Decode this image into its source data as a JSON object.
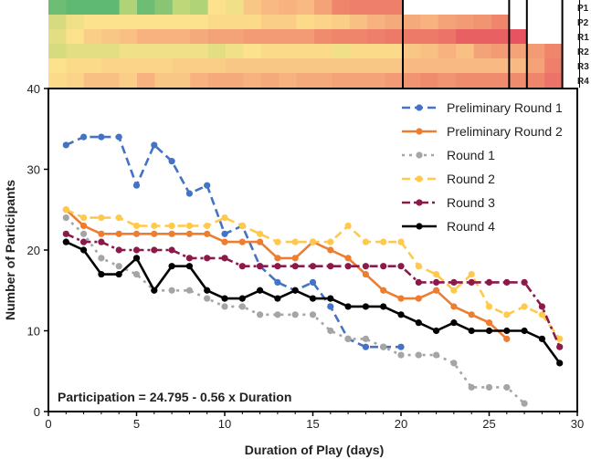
{
  "chart_data": {
    "type": "line",
    "xlabel": "Duration of Play (days)",
    "ylabel": "Number of Participants",
    "xlim": [
      0,
      30
    ],
    "ylim": [
      0,
      40
    ],
    "xticks": [
      "0",
      "5",
      "10",
      "15",
      "20",
      "25",
      "30"
    ],
    "yticks": [
      "0",
      "10",
      "20",
      "30",
      "40"
    ],
    "annotation": "Participation = 24.795 - 0.56 x Duration",
    "legend_position": "top-right",
    "series": [
      {
        "name": "Preliminary Round 1",
        "color": "#4472C4",
        "dash": "dash",
        "x": [
          1,
          2,
          3,
          4,
          5,
          6,
          7,
          8,
          9,
          10,
          11,
          12,
          13,
          14,
          15,
          16,
          17,
          18,
          19,
          20
        ],
        "values": [
          33,
          34,
          34,
          34,
          28,
          33,
          31,
          27,
          28,
          22,
          23,
          18,
          16,
          15,
          16,
          13,
          9,
          8,
          8,
          8
        ]
      },
      {
        "name": "Preliminary Round 2",
        "color": "#ED7D31",
        "dash": "solid",
        "x": [
          1,
          2,
          3,
          4,
          5,
          6,
          7,
          8,
          9,
          10,
          11,
          12,
          13,
          14,
          15,
          16,
          17,
          18,
          19,
          20,
          21,
          22,
          23,
          24,
          25,
          26
        ],
        "values": [
          25,
          23,
          22,
          22,
          22,
          22,
          22,
          22,
          22,
          21,
          21,
          21,
          19,
          19,
          21,
          20,
          19,
          17,
          15,
          14,
          14,
          15,
          13,
          12,
          11,
          9
        ]
      },
      {
        "name": "Round 1",
        "color": "#A5A5A5",
        "dash": "dot",
        "x": [
          1,
          2,
          3,
          4,
          5,
          6,
          7,
          8,
          9,
          10,
          11,
          12,
          13,
          14,
          15,
          16,
          17,
          18,
          19,
          20,
          21,
          22,
          23,
          24,
          25,
          26,
          27
        ],
        "values": [
          24,
          22,
          19,
          18,
          17,
          15,
          15,
          15,
          14,
          13,
          13,
          12,
          12,
          12,
          12,
          10,
          9,
          9,
          8,
          7,
          7,
          7,
          6,
          3,
          3,
          3,
          1
        ]
      },
      {
        "name": "Round 2",
        "color": "#FFC94D",
        "dash": "dash",
        "x": [
          1,
          2,
          3,
          4,
          5,
          6,
          7,
          8,
          9,
          10,
          11,
          12,
          13,
          14,
          15,
          16,
          17,
          18,
          19,
          20,
          21,
          22,
          23,
          24,
          25,
          26,
          27,
          28,
          29
        ],
        "values": [
          25,
          24,
          24,
          24,
          23,
          23,
          23,
          23,
          23,
          24,
          23,
          22,
          21,
          21,
          21,
          21,
          23,
          21,
          21,
          21,
          18,
          17,
          15,
          17,
          13,
          12,
          13,
          12,
          9
        ]
      },
      {
        "name": "Round 3",
        "color": "#8B1A4A",
        "dash": "dashdot",
        "x": [
          1,
          2,
          3,
          4,
          5,
          6,
          7,
          8,
          9,
          10,
          11,
          12,
          13,
          14,
          15,
          16,
          17,
          18,
          19,
          20,
          21,
          22,
          23,
          24,
          25,
          26,
          27,
          28,
          29
        ],
        "values": [
          22,
          21,
          21,
          20,
          20,
          20,
          20,
          19,
          19,
          19,
          18,
          18,
          18,
          18,
          18,
          18,
          18,
          18,
          18,
          18,
          16,
          16,
          16,
          16,
          16,
          16,
          16,
          13,
          8
        ]
      },
      {
        "name": "Round 4",
        "color": "#000000",
        "dash": "solid",
        "x": [
          1,
          2,
          3,
          4,
          5,
          6,
          7,
          8,
          9,
          10,
          11,
          12,
          13,
          14,
          15,
          16,
          17,
          18,
          19,
          20,
          21,
          22,
          23,
          24,
          25,
          26,
          27,
          28,
          29
        ],
        "values": [
          21,
          20,
          17,
          17,
          19,
          15,
          18,
          18,
          15,
          14,
          14,
          15,
          14,
          15,
          14,
          14,
          13,
          13,
          13,
          12,
          11,
          10,
          11,
          10,
          10,
          10,
          10,
          9,
          6
        ]
      }
    ],
    "heatmap": {
      "rows": [
        "P1",
        "P2",
        "R1",
        "R2",
        "R3",
        "R4"
      ],
      "row_lengths": [
        20,
        26,
        27,
        29,
        29,
        29
      ],
      "row_values": [
        [
          33,
          34,
          34,
          34,
          28,
          33,
          31,
          27,
          28,
          22,
          23,
          18,
          16,
          15,
          16,
          13,
          9,
          8,
          8,
          8
        ],
        [
          25,
          23,
          22,
          22,
          22,
          22,
          22,
          22,
          22,
          21,
          21,
          21,
          19,
          19,
          21,
          20,
          19,
          17,
          15,
          14,
          14,
          15,
          13,
          12,
          11,
          9
        ],
        [
          24,
          22,
          19,
          18,
          17,
          15,
          15,
          15,
          14,
          13,
          13,
          12,
          12,
          12,
          12,
          10,
          9,
          9,
          8,
          7,
          7,
          7,
          6,
          3,
          3,
          3,
          1
        ],
        [
          25,
          24,
          24,
          24,
          23,
          23,
          23,
          23,
          23,
          24,
          23,
          22,
          21,
          21,
          21,
          21,
          23,
          21,
          21,
          21,
          18,
          17,
          15,
          17,
          13,
          12,
          13,
          12,
          9
        ],
        [
          22,
          21,
          21,
          20,
          20,
          20,
          20,
          19,
          19,
          19,
          18,
          18,
          18,
          18,
          18,
          18,
          18,
          18,
          18,
          18,
          16,
          16,
          16,
          16,
          16,
          16,
          16,
          13,
          8
        ],
        [
          21,
          20,
          17,
          17,
          19,
          15,
          18,
          18,
          15,
          14,
          14,
          15,
          14,
          15,
          14,
          14,
          13,
          13,
          13,
          12,
          11,
          10,
          11,
          10,
          10,
          10,
          10,
          9,
          6
        ]
      ]
    }
  }
}
